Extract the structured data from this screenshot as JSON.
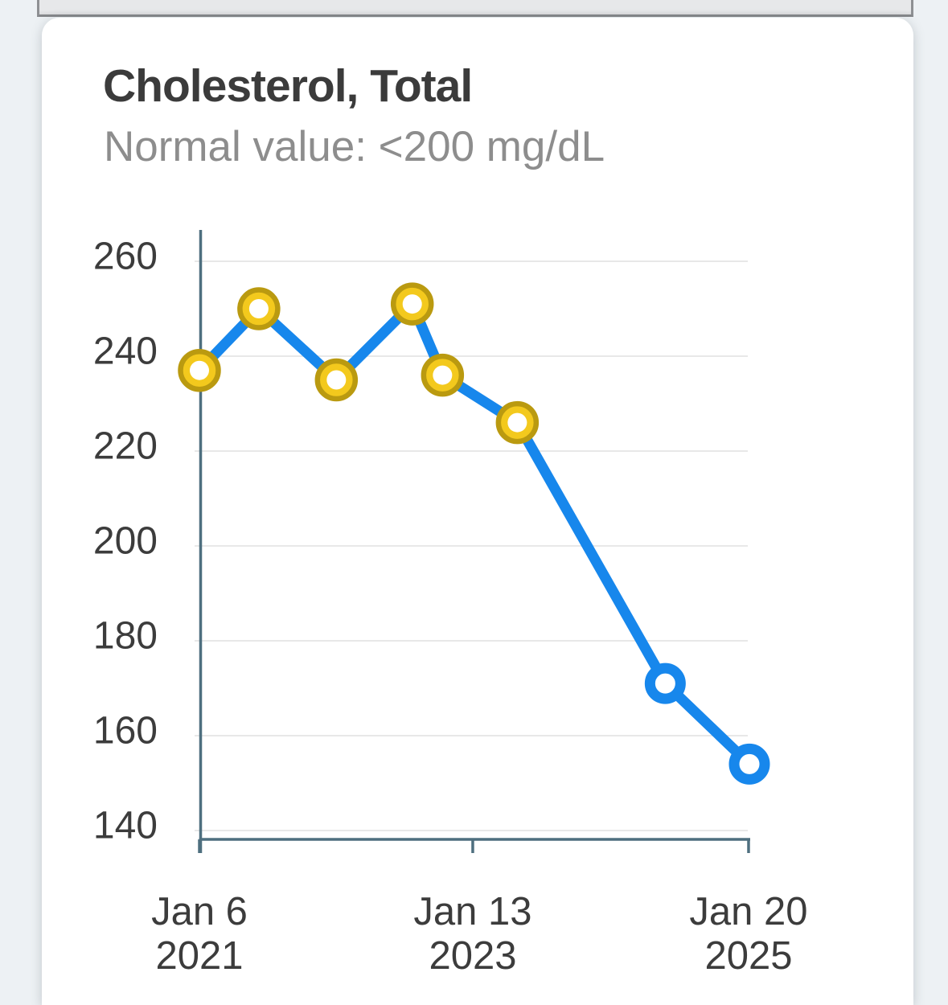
{
  "card": {
    "title": "Cholesterol, Total",
    "subtitle": "Normal value: <200 mg/dL"
  },
  "colors": {
    "accent_blue": "#1787ec",
    "marker_yellow": "#f3c91d",
    "marker_yellow_ring": "#ba9a10",
    "axis": "#4e6f7f",
    "gridline": "#e8e8e8",
    "tick_text": "#3c3c3c",
    "title_text": "#3b3b3b",
    "subtitle_text": "#8d8d8d"
  },
  "chart_data": {
    "type": "line",
    "title": "Cholesterol, Total",
    "subtitle": "Normal value: <200 mg/dL",
    "unit": "mg/dL",
    "normal_threshold": 200,
    "grid": true,
    "legend": "none",
    "ylim": [
      138,
      262
    ],
    "yticks": [
      140,
      160,
      180,
      200,
      220,
      240,
      260
    ],
    "x_tick_labels": [
      {
        "line1": "Jan 6",
        "line2": "2021",
        "frac": 0.0
      },
      {
        "line1": "Jan 13",
        "line2": "2023",
        "frac": 0.497
      },
      {
        "line1": "Jan 20",
        "line2": "2025",
        "frac": 0.9985
      }
    ],
    "series": [
      {
        "name": "Cholesterol, Total",
        "points": [
          {
            "frac": 0.0,
            "value": 237,
            "status": "high"
          },
          {
            "frac": 0.108,
            "value": 250,
            "status": "high"
          },
          {
            "frac": 0.249,
            "value": 235,
            "status": "high"
          },
          {
            "frac": 0.387,
            "value": 251,
            "status": "high"
          },
          {
            "frac": 0.442,
            "value": 236,
            "status": "high"
          },
          {
            "frac": 0.578,
            "value": 226,
            "status": "high"
          },
          {
            "frac": 0.847,
            "value": 171,
            "status": "normal"
          },
          {
            "frac": 1.0,
            "value": 154,
            "status": "normal"
          }
        ]
      }
    ]
  }
}
